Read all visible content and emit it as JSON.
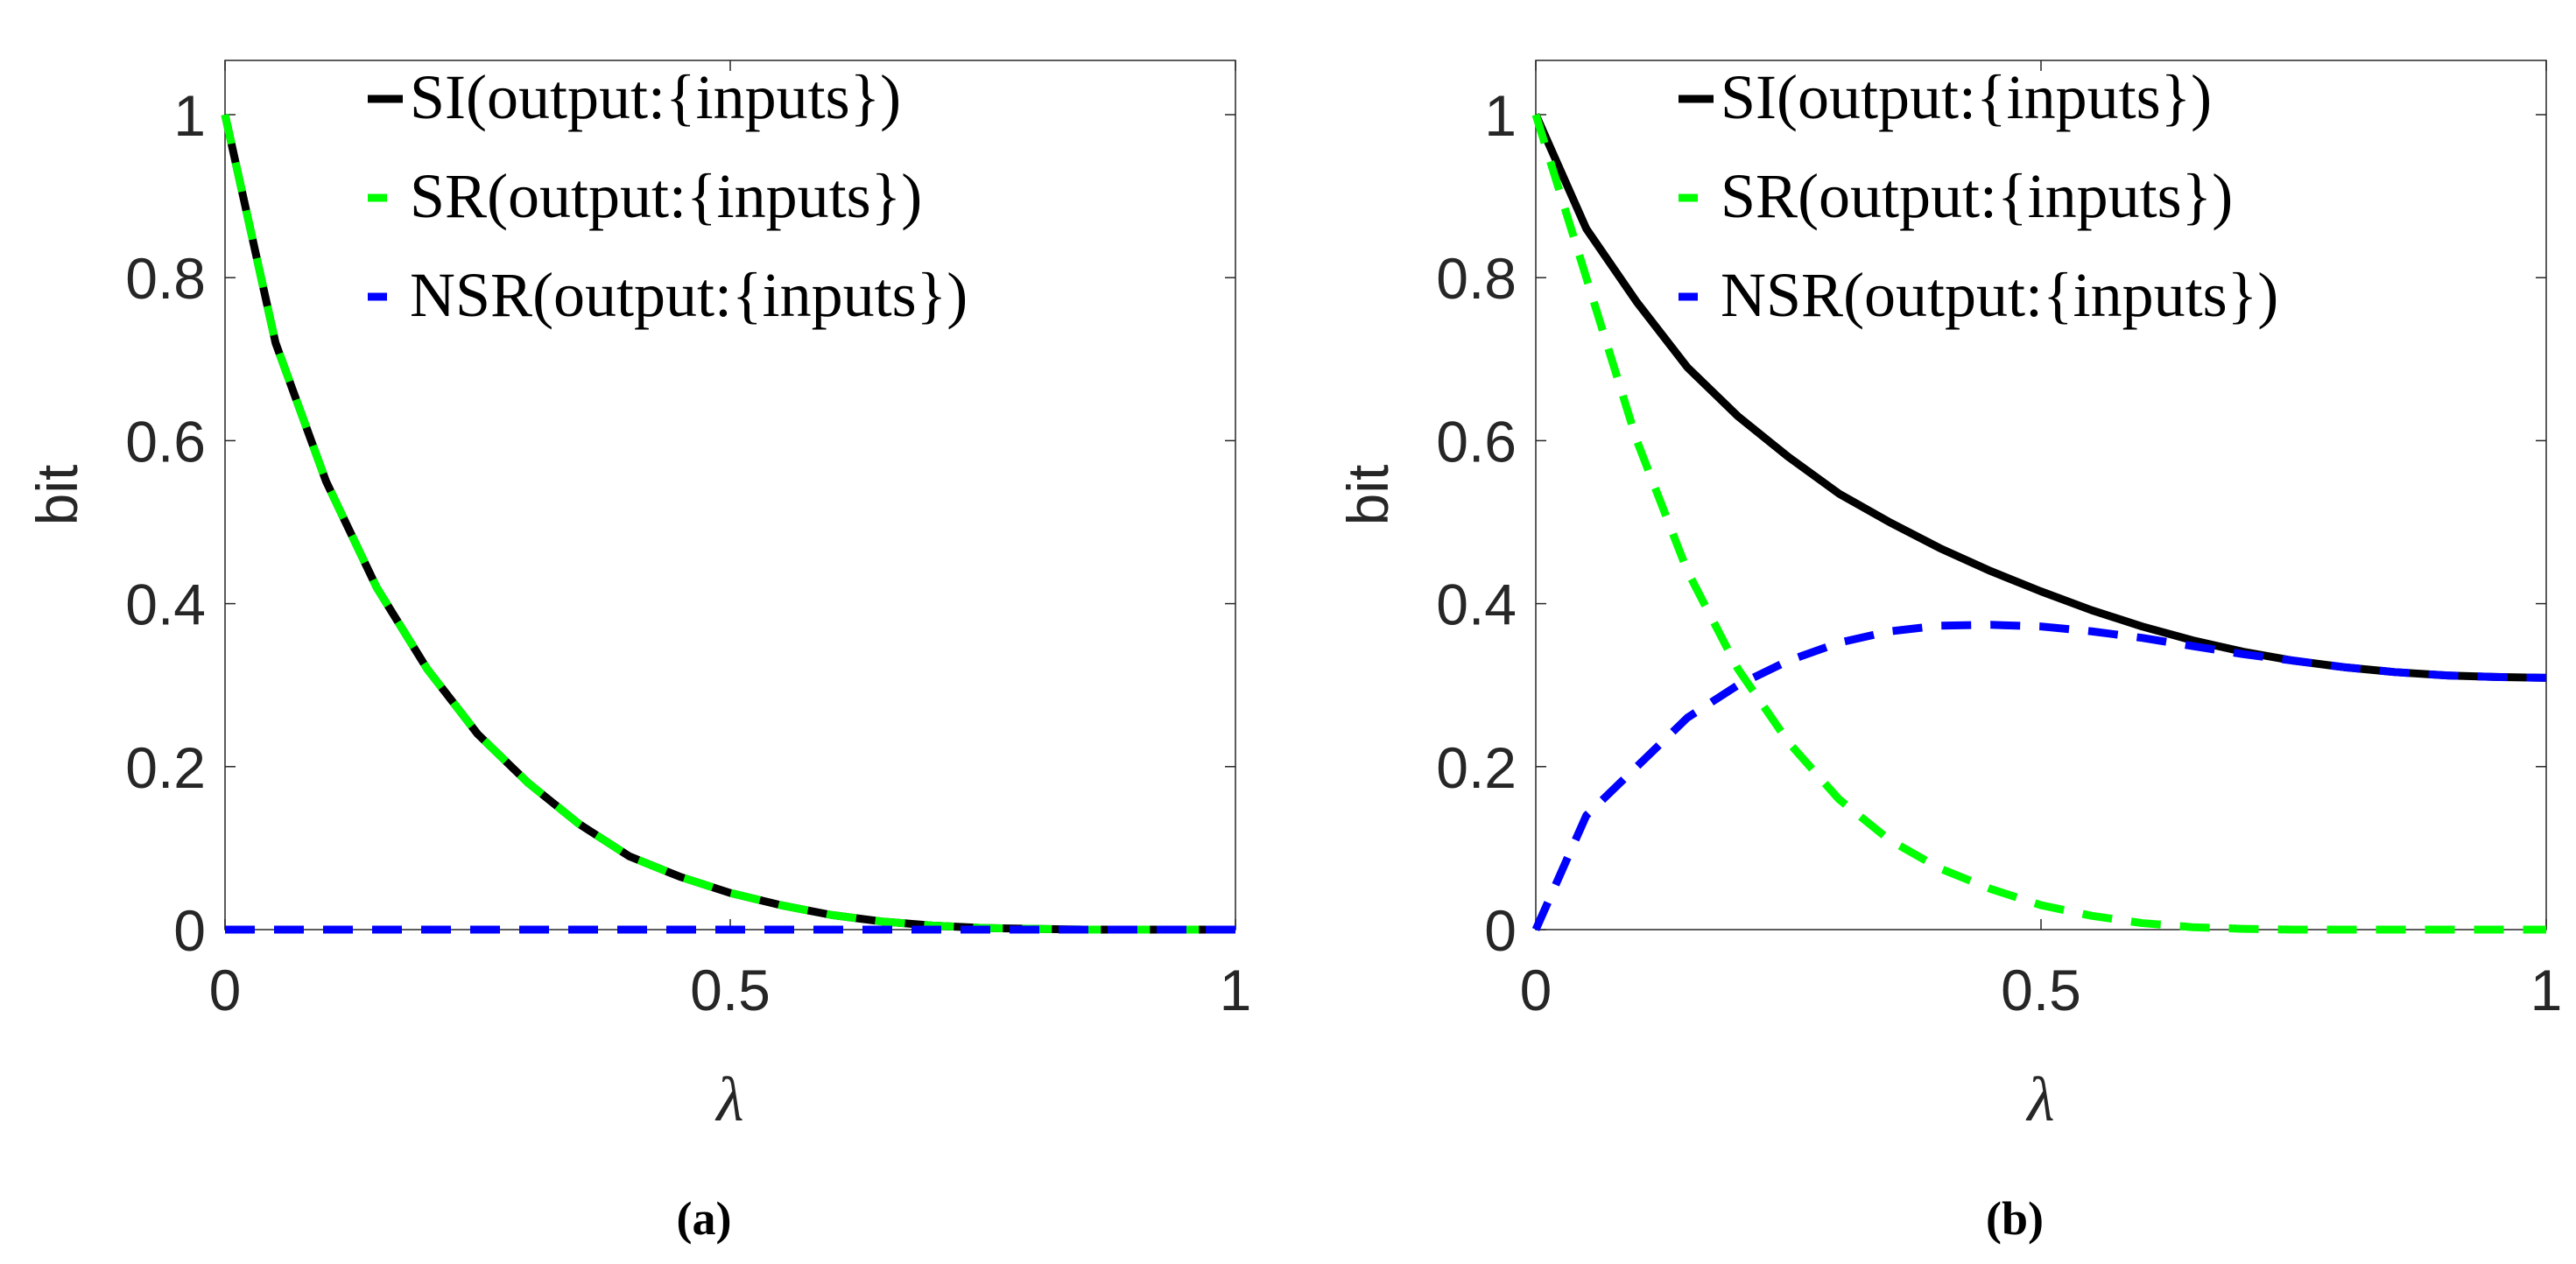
{
  "chart_data": [
    {
      "type": "line",
      "panel": "(a)",
      "caption": "(a)",
      "xlabel": "λ",
      "ylabel": "bit",
      "xlim": [
        0,
        1
      ],
      "ylim": [
        0,
        1.1
      ],
      "xticks": [
        "0",
        "0.5",
        "1"
      ],
      "yticks": [
        "0",
        "0.2",
        "0.4",
        "0.6",
        "0.8",
        "1"
      ],
      "grid": false,
      "legend_position": "upper right",
      "x": [
        0,
        0.05,
        0.1,
        0.15,
        0.2,
        0.25,
        0.3,
        0.35,
        0.4,
        0.45,
        0.5,
        0.55,
        0.6,
        0.65,
        0.7,
        0.75,
        0.8,
        0.85,
        0.9,
        0.95,
        1.0
      ],
      "series": [
        {
          "name": "SI(output:{inputs})",
          "color": "#000000",
          "style": "solid",
          "values": [
            1.0,
            0.72,
            0.55,
            0.42,
            0.32,
            0.24,
            0.18,
            0.13,
            0.09,
            0.065,
            0.045,
            0.03,
            0.018,
            0.01,
            0.005,
            0.002,
            0.001,
            0,
            0,
            0,
            0
          ]
        },
        {
          "name": "SR(output:{inputs})",
          "color": "#00ff00",
          "style": "dashed",
          "values": [
            1.0,
            0.72,
            0.55,
            0.42,
            0.32,
            0.24,
            0.18,
            0.13,
            0.09,
            0.065,
            0.045,
            0.03,
            0.018,
            0.01,
            0.005,
            0.002,
            0.001,
            0,
            0,
            0,
            0
          ]
        },
        {
          "name": "NSR(output:{inputs})",
          "color": "#0000ff",
          "style": "dashed",
          "values": [
            0,
            0,
            0,
            0,
            0,
            0,
            0,
            0,
            0,
            0,
            0,
            0,
            0,
            0,
            0,
            0,
            0,
            0,
            0,
            0,
            0
          ]
        }
      ]
    },
    {
      "type": "line",
      "panel": "(b)",
      "caption": "(b)",
      "xlabel": "λ",
      "ylabel": "bit",
      "xlim": [
        0,
        1
      ],
      "ylim": [
        0,
        1.1
      ],
      "xticks": [
        "0",
        "0.5",
        "1"
      ],
      "yticks": [
        "0",
        "0.2",
        "0.4",
        "0.6",
        "0.8",
        "1"
      ],
      "grid": false,
      "legend_position": "upper right",
      "x": [
        0,
        0.05,
        0.1,
        0.15,
        0.2,
        0.25,
        0.3,
        0.35,
        0.4,
        0.45,
        0.5,
        0.55,
        0.6,
        0.65,
        0.7,
        0.75,
        0.8,
        0.85,
        0.9,
        0.95,
        1.0
      ],
      "series": [
        {
          "name": "SI(output:{inputs})",
          "color": "#000000",
          "style": "solid",
          "values": [
            1.0,
            0.86,
            0.77,
            0.69,
            0.63,
            0.58,
            0.535,
            0.5,
            0.468,
            0.44,
            0.415,
            0.392,
            0.372,
            0.355,
            0.341,
            0.33,
            0.322,
            0.316,
            0.312,
            0.31,
            0.309
          ]
        },
        {
          "name": "SR(output:{inputs})",
          "color": "#00ff00",
          "style": "dashed",
          "values": [
            1.0,
            0.8,
            0.6,
            0.44,
            0.32,
            0.23,
            0.16,
            0.11,
            0.075,
            0.05,
            0.03,
            0.017,
            0.008,
            0.003,
            0.001,
            0,
            0,
            0,
            0,
            0,
            0
          ]
        },
        {
          "name": "NSR(output:{inputs})",
          "color": "#0000ff",
          "style": "dashed",
          "values": [
            0,
            0.14,
            0.2,
            0.26,
            0.3,
            0.33,
            0.352,
            0.366,
            0.373,
            0.374,
            0.372,
            0.366,
            0.358,
            0.348,
            0.338,
            0.33,
            0.322,
            0.316,
            0.312,
            0.31,
            0.309
          ]
        }
      ]
    }
  ],
  "panels": [
    {
      "caption": "(a)",
      "xlabel": "λ",
      "ylabel": "bit",
      "xticks": [
        "0",
        "0.5",
        "1"
      ],
      "yticks": [
        "0",
        "0.2",
        "0.4",
        "0.6",
        "0.8",
        "1"
      ],
      "legend": [
        "SI(output:{inputs})",
        "SR(output:{inputs})",
        "NSR(output:{inputs})"
      ]
    },
    {
      "caption": "(b)",
      "xlabel": "λ",
      "ylabel": "bit",
      "xticks": [
        "0",
        "0.5",
        "1"
      ],
      "yticks": [
        "0",
        "0.2",
        "0.4",
        "0.6",
        "0.8",
        "1"
      ],
      "legend": [
        "SI(output:{inputs})",
        "SR(output:{inputs})",
        "NSR(output:{inputs})"
      ]
    }
  ]
}
